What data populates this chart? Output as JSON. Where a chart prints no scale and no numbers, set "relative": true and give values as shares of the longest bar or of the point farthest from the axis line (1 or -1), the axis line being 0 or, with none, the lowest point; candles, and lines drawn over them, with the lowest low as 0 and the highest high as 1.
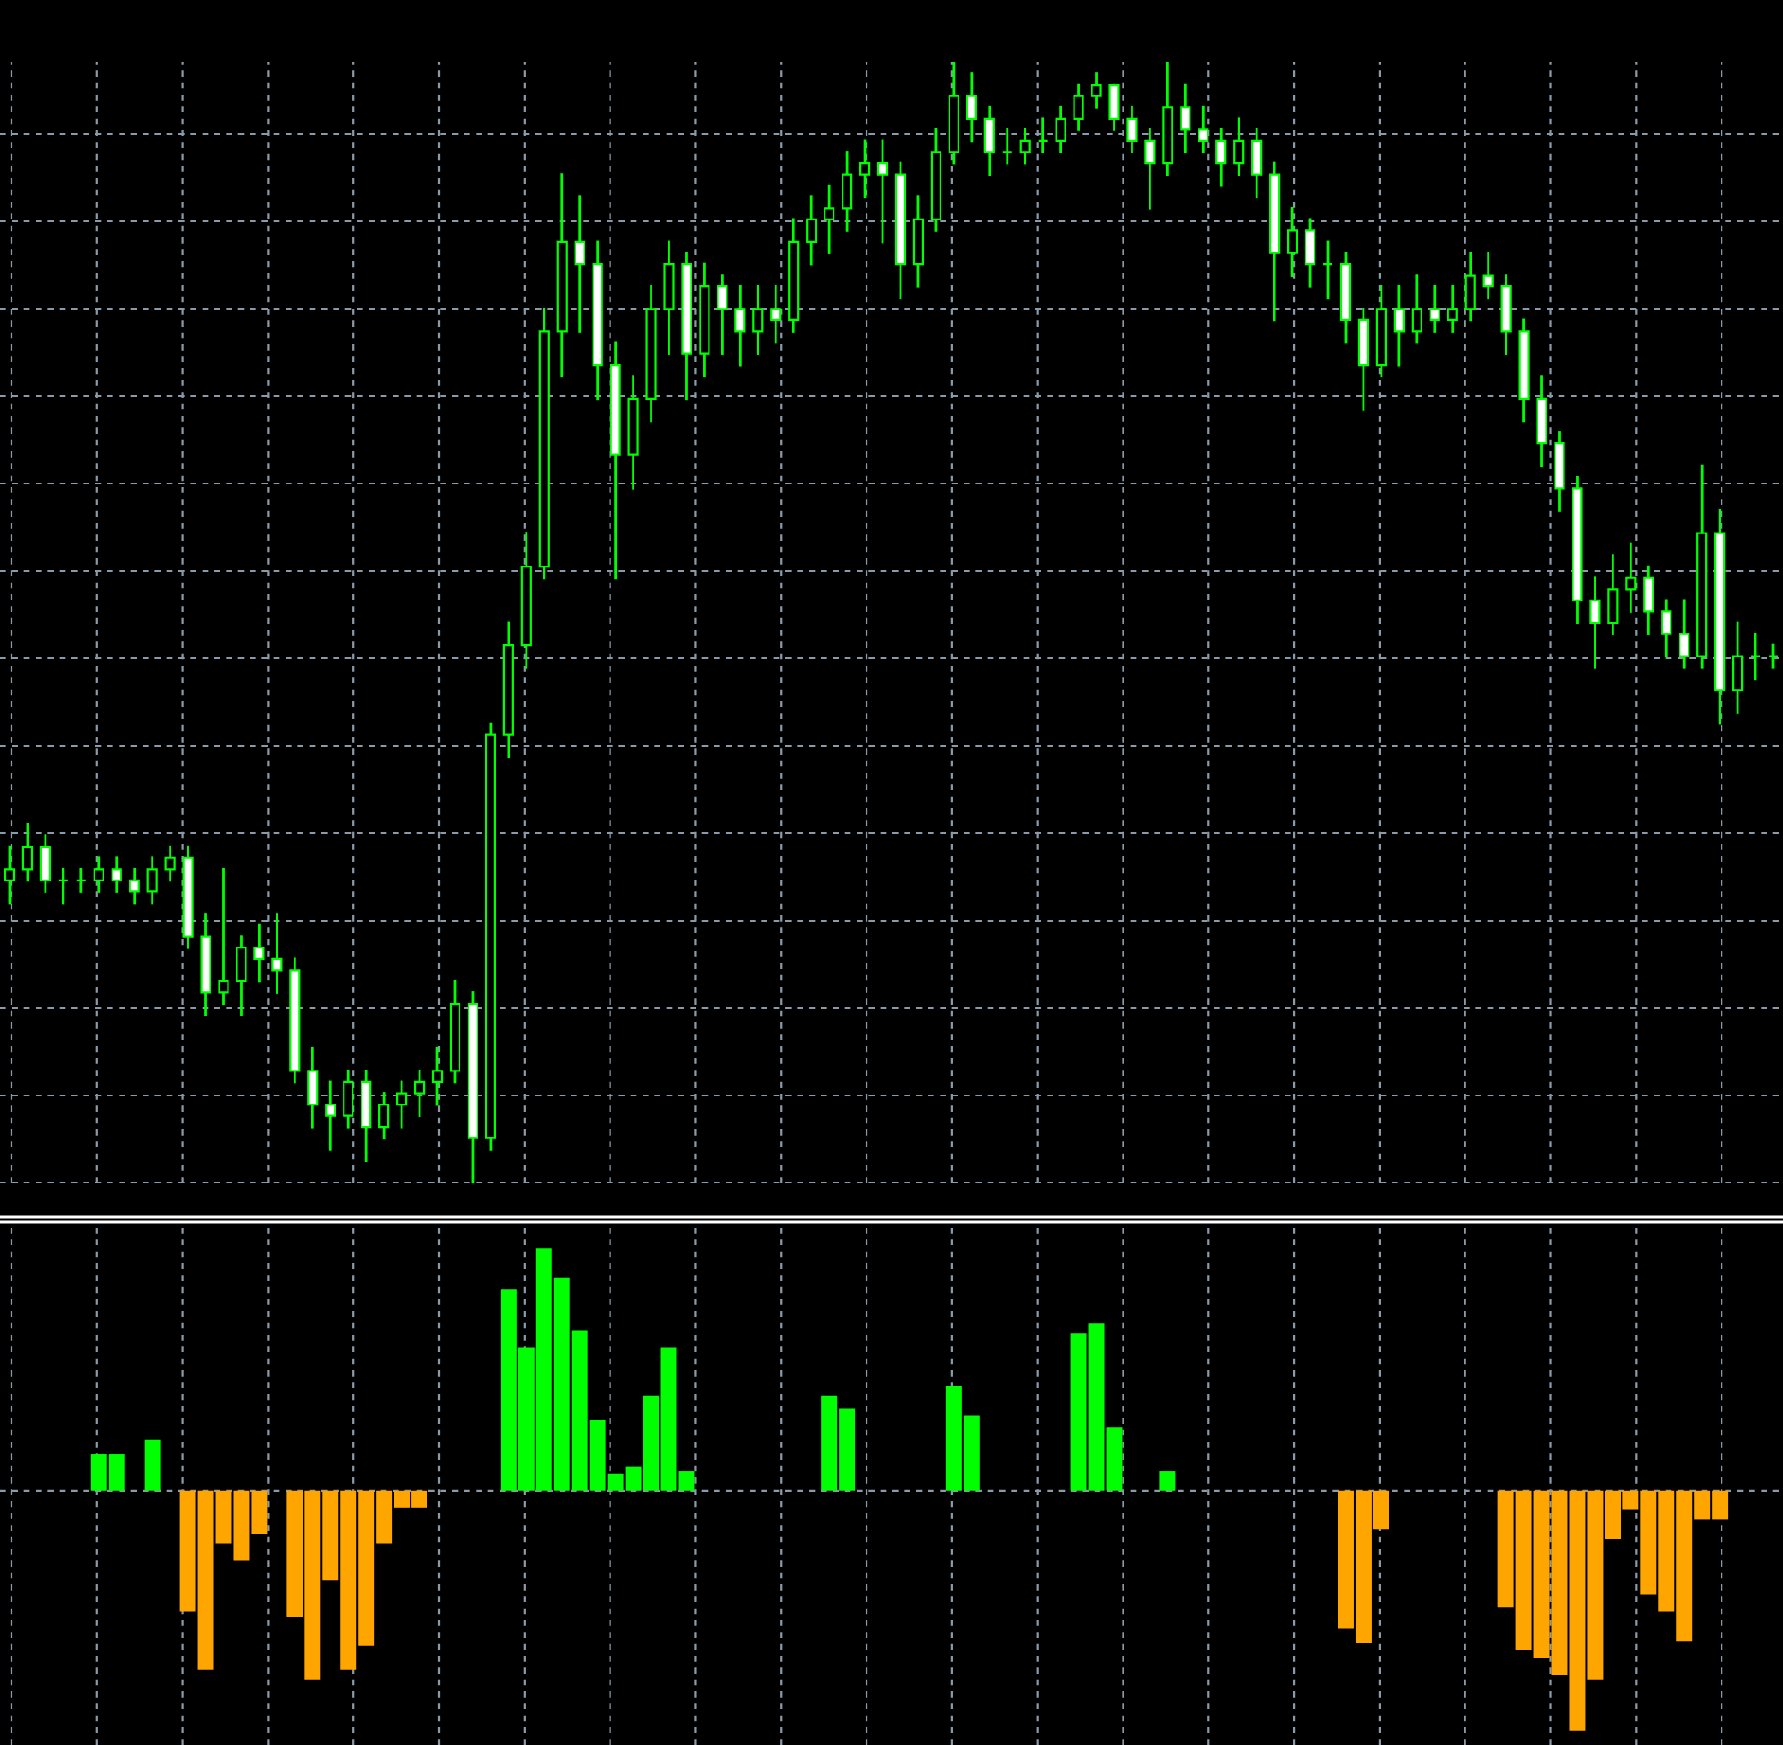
{
  "chart_data": [
    {
      "type": "candlestick",
      "relative": true,
      "grid": true,
      "tick_labels": false,
      "categories": [
        null,
        null,
        null,
        null,
        null,
        null,
        null,
        null,
        null,
        null,
        null,
        null,
        null,
        null,
        null,
        null,
        null,
        null,
        null,
        null,
        null,
        null,
        null,
        null,
        null,
        null,
        null,
        null,
        null,
        null,
        null,
        null,
        null,
        null,
        null,
        null,
        null,
        null,
        null,
        null,
        null,
        null,
        null,
        null,
        null,
        null,
        null,
        null,
        null,
        null,
        null,
        null,
        null,
        null,
        null,
        null,
        null,
        null,
        null,
        null,
        null,
        null,
        null,
        null,
        null,
        null,
        null,
        null,
        null,
        null,
        null,
        null,
        null,
        null,
        null,
        null,
        null,
        null,
        null,
        null,
        null,
        null,
        null,
        null,
        null,
        null,
        null,
        null,
        null,
        null,
        null,
        null,
        null,
        null,
        null,
        null,
        null,
        null,
        null,
        null
      ],
      "ohlc": [
        [
          0.27,
          0.3,
          0.25,
          0.28
        ],
        [
          0.28,
          0.32,
          0.27,
          0.3
        ],
        [
          0.3,
          0.31,
          0.26,
          0.27
        ],
        [
          0.27,
          0.28,
          0.25,
          0.27
        ],
        [
          0.27,
          0.28,
          0.26,
          0.27
        ],
        [
          0.27,
          0.29,
          0.26,
          0.28
        ],
        [
          0.28,
          0.29,
          0.26,
          0.27
        ],
        [
          0.27,
          0.28,
          0.25,
          0.26
        ],
        [
          0.26,
          0.29,
          0.25,
          0.28
        ],
        [
          0.28,
          0.3,
          0.27,
          0.29
        ],
        [
          0.29,
          0.3,
          0.21,
          0.22
        ],
        [
          0.22,
          0.24,
          0.15,
          0.17
        ],
        [
          0.17,
          0.28,
          0.16,
          0.18
        ],
        [
          0.18,
          0.22,
          0.15,
          0.21
        ],
        [
          0.21,
          0.23,
          0.18,
          0.2
        ],
        [
          0.2,
          0.24,
          0.17,
          0.19
        ],
        [
          0.19,
          0.2,
          0.09,
          0.1
        ],
        [
          0.1,
          0.12,
          0.05,
          0.07
        ],
        [
          0.07,
          0.09,
          0.03,
          0.06
        ],
        [
          0.06,
          0.1,
          0.05,
          0.09
        ],
        [
          0.09,
          0.1,
          0.02,
          0.05
        ],
        [
          0.05,
          0.08,
          0.04,
          0.07
        ],
        [
          0.07,
          0.09,
          0.05,
          0.08
        ],
        [
          0.08,
          0.1,
          0.06,
          0.09
        ],
        [
          0.09,
          0.12,
          0.07,
          0.1
        ],
        [
          0.1,
          0.18,
          0.09,
          0.16
        ],
        [
          0.16,
          0.17,
          0.0,
          0.04
        ],
        [
          0.04,
          0.41,
          0.03,
          0.4
        ],
        [
          0.4,
          0.5,
          0.38,
          0.48
        ],
        [
          0.48,
          0.58,
          0.46,
          0.55
        ],
        [
          0.55,
          0.78,
          0.54,
          0.76
        ],
        [
          0.76,
          0.9,
          0.72,
          0.84
        ],
        [
          0.84,
          0.88,
          0.76,
          0.82
        ],
        [
          0.82,
          0.84,
          0.7,
          0.73
        ],
        [
          0.73,
          0.75,
          0.54,
          0.65
        ],
        [
          0.65,
          0.72,
          0.62,
          0.7
        ],
        [
          0.7,
          0.8,
          0.68,
          0.78
        ],
        [
          0.78,
          0.84,
          0.74,
          0.82
        ],
        [
          0.82,
          0.83,
          0.7,
          0.74
        ],
        [
          0.74,
          0.82,
          0.72,
          0.8
        ],
        [
          0.8,
          0.81,
          0.74,
          0.78
        ],
        [
          0.78,
          0.8,
          0.73,
          0.76
        ],
        [
          0.76,
          0.8,
          0.74,
          0.78
        ],
        [
          0.78,
          0.8,
          0.75,
          0.77
        ],
        [
          0.77,
          0.86,
          0.76,
          0.84
        ],
        [
          0.84,
          0.88,
          0.82,
          0.86
        ],
        [
          0.86,
          0.89,
          0.83,
          0.87
        ],
        [
          0.87,
          0.92,
          0.85,
          0.9
        ],
        [
          0.9,
          0.93,
          0.88,
          0.91
        ],
        [
          0.91,
          0.93,
          0.84,
          0.9
        ],
        [
          0.9,
          0.91,
          0.79,
          0.82
        ],
        [
          0.82,
          0.88,
          0.8,
          0.86
        ],
        [
          0.86,
          0.94,
          0.85,
          0.92
        ],
        [
          0.92,
          1.0,
          0.91,
          0.97
        ],
        [
          0.97,
          0.99,
          0.93,
          0.95
        ],
        [
          0.95,
          0.96,
          0.9,
          0.92
        ],
        [
          0.92,
          0.94,
          0.91,
          0.92
        ],
        [
          0.92,
          0.94,
          0.91,
          0.93
        ],
        [
          0.93,
          0.95,
          0.92,
          0.93
        ],
        [
          0.93,
          0.96,
          0.92,
          0.95
        ],
        [
          0.95,
          0.98,
          0.94,
          0.97
        ],
        [
          0.97,
          0.99,
          0.96,
          0.98
        ],
        [
          0.98,
          0.98,
          0.94,
          0.95
        ],
        [
          0.95,
          0.96,
          0.92,
          0.93
        ],
        [
          0.93,
          0.94,
          0.87,
          0.91
        ],
        [
          0.91,
          1.0,
          0.9,
          0.96
        ],
        [
          0.96,
          0.98,
          0.92,
          0.94
        ],
        [
          0.94,
          0.96,
          0.92,
          0.93
        ],
        [
          0.93,
          0.94,
          0.89,
          0.91
        ],
        [
          0.91,
          0.95,
          0.9,
          0.93
        ],
        [
          0.93,
          0.94,
          0.88,
          0.9
        ],
        [
          0.9,
          0.91,
          0.77,
          0.83
        ],
        [
          0.83,
          0.87,
          0.81,
          0.85
        ],
        [
          0.85,
          0.86,
          0.8,
          0.82
        ],
        [
          0.82,
          0.84,
          0.79,
          0.82
        ],
        [
          0.82,
          0.83,
          0.75,
          0.77
        ],
        [
          0.77,
          0.78,
          0.69,
          0.73
        ],
        [
          0.73,
          0.8,
          0.72,
          0.78
        ],
        [
          0.78,
          0.8,
          0.73,
          0.76
        ],
        [
          0.76,
          0.81,
          0.75,
          0.78
        ],
        [
          0.78,
          0.8,
          0.76,
          0.77
        ],
        [
          0.77,
          0.8,
          0.76,
          0.78
        ],
        [
          0.78,
          0.83,
          0.77,
          0.81
        ],
        [
          0.81,
          0.83,
          0.79,
          0.8
        ],
        [
          0.8,
          0.81,
          0.74,
          0.76
        ],
        [
          0.76,
          0.77,
          0.68,
          0.7
        ],
        [
          0.7,
          0.72,
          0.64,
          0.66
        ],
        [
          0.66,
          0.67,
          0.6,
          0.62
        ],
        [
          0.62,
          0.63,
          0.5,
          0.52
        ],
        [
          0.52,
          0.54,
          0.46,
          0.5
        ],
        [
          0.5,
          0.56,
          0.49,
          0.53
        ],
        [
          0.53,
          0.57,
          0.51,
          0.54
        ],
        [
          0.54,
          0.55,
          0.49,
          0.51
        ],
        [
          0.51,
          0.52,
          0.47,
          0.49
        ],
        [
          0.49,
          0.52,
          0.46,
          0.47
        ],
        [
          0.47,
          0.64,
          0.46,
          0.58
        ],
        [
          0.58,
          0.6,
          0.41,
          0.44
        ],
        [
          0.44,
          0.5,
          0.42,
          0.47
        ],
        [
          0.47,
          0.49,
          0.45,
          0.47
        ],
        [
          0.47,
          0.48,
          0.46,
          0.47
        ]
      ]
    },
    {
      "type": "bar",
      "relative": true,
      "grid": true,
      "tick_labels": false,
      "categories": [
        null,
        null,
        null,
        null,
        null,
        null,
        null,
        null,
        null,
        null,
        null,
        null,
        null,
        null,
        null,
        null,
        null,
        null,
        null,
        null,
        null,
        null,
        null,
        null,
        null,
        null,
        null,
        null,
        null,
        null,
        null,
        null,
        null,
        null,
        null,
        null,
        null,
        null,
        null,
        null,
        null,
        null,
        null,
        null,
        null,
        null,
        null,
        null,
        null,
        null,
        null,
        null,
        null,
        null,
        null,
        null,
        null,
        null,
        null,
        null,
        null,
        null,
        null,
        null,
        null,
        null,
        null,
        null,
        null,
        null,
        null,
        null,
        null,
        null,
        null,
        null,
        null,
        null,
        null,
        null,
        null,
        null,
        null,
        null,
        null,
        null,
        null,
        null,
        null,
        null,
        null,
        null,
        null,
        null,
        null,
        null,
        null,
        null,
        null,
        null
      ],
      "series": [
        {
          "color": "#00ff00",
          "values": [
            null,
            null,
            null,
            null,
            null,
            0.15,
            0.15,
            null,
            0.21,
            null,
            null,
            null,
            null,
            null,
            null,
            null,
            null,
            null,
            null,
            null,
            null,
            null,
            null,
            null,
            null,
            null,
            null,
            null,
            0.83,
            0.59,
            1.0,
            0.88,
            0.66,
            0.29,
            0.07,
            0.1,
            0.39,
            0.59,
            0.08,
            null,
            null,
            null,
            null,
            null,
            null,
            null,
            0.39,
            0.34,
            null,
            null,
            null,
            null,
            null,
            0.43,
            0.31,
            null,
            null,
            null,
            null,
            null,
            0.65,
            0.69,
            0.26,
            null,
            null,
            0.08,
            null,
            null,
            null,
            null,
            null,
            null,
            null,
            null,
            null,
            null,
            null,
            null,
            null,
            null,
            null,
            null,
            null,
            null,
            null,
            null,
            null,
            null,
            null,
            null,
            null,
            null,
            null,
            null,
            null,
            null,
            null,
            null,
            null,
            null
          ]
        },
        {
          "color": "#ffa500",
          "values": [
            null,
            null,
            null,
            null,
            null,
            null,
            null,
            null,
            null,
            null,
            -0.5,
            -0.74,
            -0.22,
            -0.29,
            -0.18,
            null,
            -0.52,
            -0.78,
            -0.37,
            -0.74,
            -0.64,
            -0.22,
            -0.07,
            -0.07,
            null,
            null,
            null,
            null,
            null,
            null,
            null,
            null,
            null,
            null,
            null,
            null,
            null,
            null,
            null,
            null,
            null,
            null,
            null,
            null,
            null,
            null,
            null,
            null,
            null,
            null,
            null,
            null,
            null,
            null,
            null,
            null,
            null,
            null,
            null,
            null,
            null,
            null,
            null,
            null,
            null,
            null,
            null,
            null,
            null,
            null,
            null,
            null,
            null,
            null,
            null,
            -0.57,
            -0.63,
            -0.16,
            null,
            null,
            null,
            null,
            null,
            null,
            -0.48,
            -0.66,
            -0.69,
            -0.76,
            -0.99,
            -0.78,
            -0.2,
            -0.08,
            -0.43,
            -0.5,
            -0.62,
            -0.12,
            -0.12,
            null,
            null,
            null
          ]
        }
      ]
    }
  ]
}
